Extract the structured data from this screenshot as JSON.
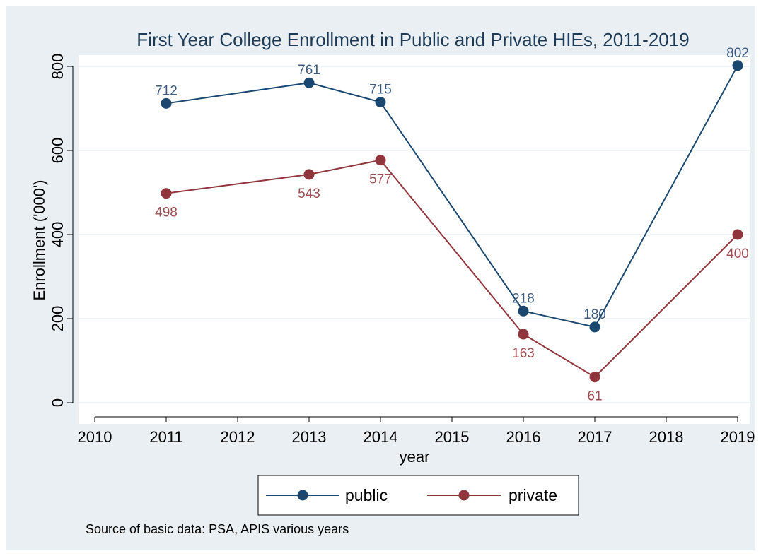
{
  "chart_data": {
    "type": "line",
    "title": "First Year College Enrollment in Public and Private HIEs, 2011-2019",
    "xlabel": "year",
    "ylabel": "Enrollment ('000')",
    "x_ticks": [
      2010,
      2011,
      2012,
      2013,
      2014,
      2015,
      2016,
      2017,
      2018,
      2019
    ],
    "y_ticks": [
      0,
      200,
      400,
      600,
      800
    ],
    "xlim": [
      2010,
      2019
    ],
    "ylim": [
      0,
      800
    ],
    "grid": true,
    "legend_position": "bottom",
    "x": [
      2011,
      2013,
      2014,
      2016,
      2017,
      2019
    ],
    "series": [
      {
        "name": "public",
        "values": [
          712,
          761,
          715,
          218,
          180,
          802
        ],
        "color": "#1a476f",
        "label_color": "#3a5a80"
      },
      {
        "name": "private",
        "values": [
          498,
          543,
          577,
          163,
          61,
          400
        ],
        "color": "#90353b",
        "label_color": "#9a4b4f"
      }
    ],
    "note": "Source of basic data: PSA, APIS various years"
  },
  "colors": {
    "background": "#e9eff3",
    "plot_background": "#ffffff",
    "grid": "#eaf2f3"
  }
}
